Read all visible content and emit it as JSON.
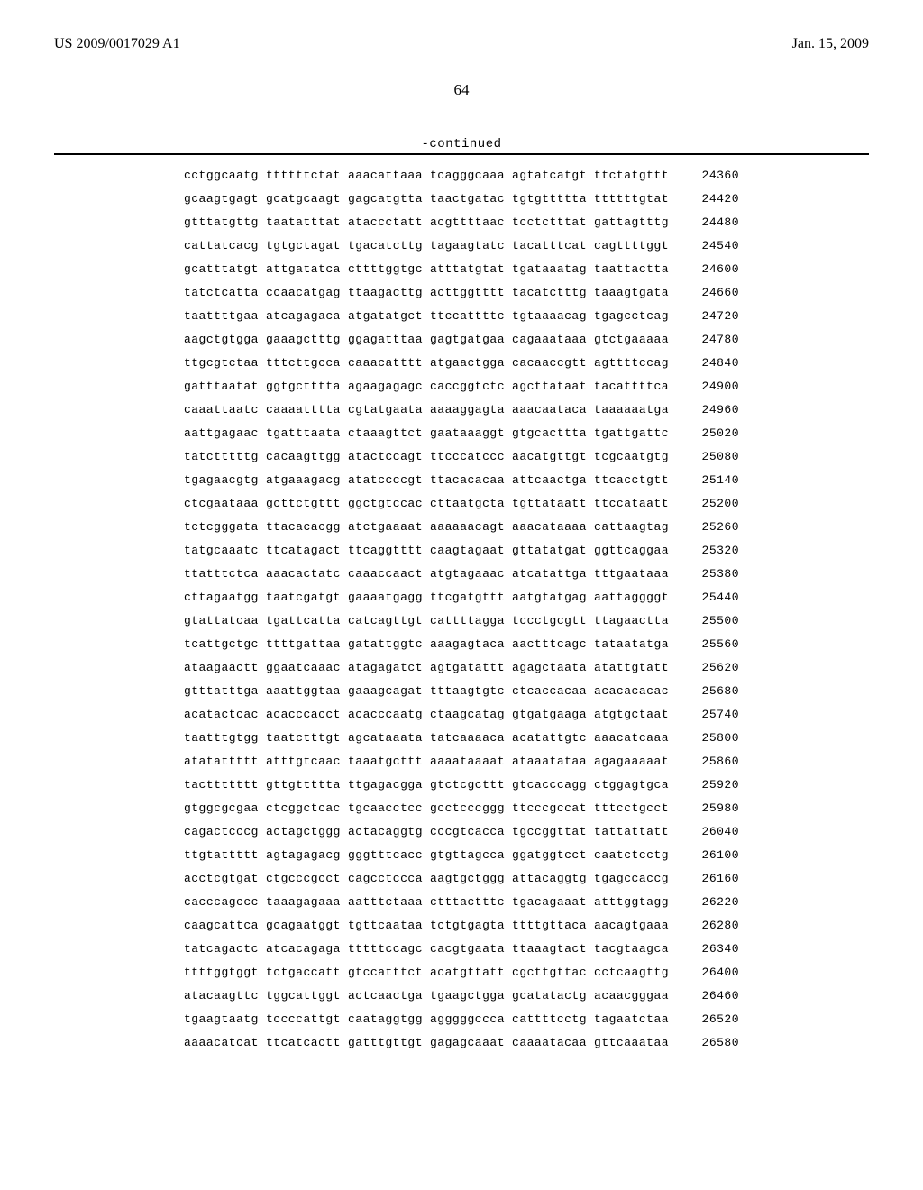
{
  "header": {
    "publication_number": "US 2009/0017029 A1",
    "publication_date": "Jan. 15, 2009"
  },
  "page_number": "64",
  "continued_label": "-continued",
  "sequence": {
    "group_gap_chars": 1,
    "rows": [
      {
        "groups": [
          "cctggcaatg",
          "ttttttctat",
          "aaacattaaa",
          "tcagggcaaa",
          "agtatcatgt",
          "ttctatgttt"
        ],
        "pos": "24360"
      },
      {
        "groups": [
          "gcaagtgagt",
          "gcatgcaagt",
          "gagcatgtta",
          "taactgatac",
          "tgtgttttta",
          "ttttttgtat"
        ],
        "pos": "24420"
      },
      {
        "groups": [
          "gtttatgttg",
          "taatatttat",
          "ataccctatt",
          "acgttttaac",
          "tcctctttat",
          "gattagtttg"
        ],
        "pos": "24480"
      },
      {
        "groups": [
          "cattatcacg",
          "tgtgctagat",
          "tgacatcttg",
          "tagaagtatc",
          "tacatttcat",
          "cagttttggt"
        ],
        "pos": "24540"
      },
      {
        "groups": [
          "gcatttatgt",
          "attgatatca",
          "cttttggtgc",
          "atttatgtat",
          "tgataaatag",
          "taattactta"
        ],
        "pos": "24600"
      },
      {
        "groups": [
          "tatctcatta",
          "ccaacatgag",
          "ttaagacttg",
          "acttggtttt",
          "tacatctttg",
          "taaagtgata"
        ],
        "pos": "24660"
      },
      {
        "groups": [
          "taattttgaa",
          "atcagagaca",
          "atgatatgct",
          "ttccattttc",
          "tgtaaaacag",
          "tgagcctcag"
        ],
        "pos": "24720"
      },
      {
        "groups": [
          "aagctgtgga",
          "gaaagctttg",
          "ggagatttaa",
          "gagtgatgaa",
          "cagaaataaa",
          "gtctgaaaaa"
        ],
        "pos": "24780"
      },
      {
        "groups": [
          "ttgcgtctaa",
          "tttcttgcca",
          "caaacatttt",
          "atgaactgga",
          "cacaaccgtt",
          "agttttccag"
        ],
        "pos": "24840"
      },
      {
        "groups": [
          "gatttaatat",
          "ggtgctttta",
          "agaagagagc",
          "caccggtctc",
          "agcttataat",
          "tacattttca"
        ],
        "pos": "24900"
      },
      {
        "groups": [
          "caaattaatc",
          "caaaatttta",
          "cgtatgaata",
          "aaaaggagta",
          "aaacaataca",
          "taaaaaatga"
        ],
        "pos": "24960"
      },
      {
        "groups": [
          "aattgagaac",
          "tgatttaata",
          "ctaaagttct",
          "gaataaaggt",
          "gtgcacttta",
          "tgattgattc"
        ],
        "pos": "25020"
      },
      {
        "groups": [
          "tatctttttg",
          "cacaagttgg",
          "atactccagt",
          "ttcccatccc",
          "aacatgttgt",
          "tcgcaatgtg"
        ],
        "pos": "25080"
      },
      {
        "groups": [
          "tgagaacgtg",
          "atgaaagacg",
          "atatccccgt",
          "ttacacacaa",
          "attcaactga",
          "ttcacctgtt"
        ],
        "pos": "25140"
      },
      {
        "groups": [
          "ctcgaataaa",
          "gcttctgttt",
          "ggctgtccac",
          "cttaatgcta",
          "tgttataatt",
          "ttccataatt"
        ],
        "pos": "25200"
      },
      {
        "groups": [
          "tctcgggata",
          "ttacacacgg",
          "atctgaaaat",
          "aaaaaacagt",
          "aaacataaaa",
          "cattaagtag"
        ],
        "pos": "25260"
      },
      {
        "groups": [
          "tatgcaaatc",
          "ttcatagact",
          "ttcaggtttt",
          "caagtagaat",
          "gttatatgat",
          "ggttcaggaa"
        ],
        "pos": "25320"
      },
      {
        "groups": [
          "ttatttctca",
          "aaacactatc",
          "caaaccaact",
          "atgtagaaac",
          "atcatattga",
          "tttgaataaa"
        ],
        "pos": "25380"
      },
      {
        "groups": [
          "cttagaatgg",
          "taatcgatgt",
          "gaaaatgagg",
          "ttcgatgttt",
          "aatgtatgag",
          "aattaggggt"
        ],
        "pos": "25440"
      },
      {
        "groups": [
          "gtattatcaa",
          "tgattcatta",
          "catcagttgt",
          "cattttagga",
          "tccctgcgtt",
          "ttagaactta"
        ],
        "pos": "25500"
      },
      {
        "groups": [
          "tcattgctgc",
          "ttttgattaa",
          "gatattggtc",
          "aaagagtaca",
          "aactttcagc",
          "tataatatga"
        ],
        "pos": "25560"
      },
      {
        "groups": [
          "ataagaactt",
          "ggaatcaaac",
          "atagagatct",
          "agtgatattt",
          "agagctaata",
          "atattgtatt"
        ],
        "pos": "25620"
      },
      {
        "groups": [
          "gtttatttga",
          "aaattggtaa",
          "gaaagcagat",
          "tttaagtgtc",
          "ctcaccacaa",
          "acacacacac"
        ],
        "pos": "25680"
      },
      {
        "groups": [
          "acatactcac",
          "acacccacct",
          "acacccaatg",
          "ctaagcatag",
          "gtgatgaaga",
          "atgtgctaat"
        ],
        "pos": "25740"
      },
      {
        "groups": [
          "taatttgtgg",
          "taatctttgt",
          "agcataaata",
          "tatcaaaaca",
          "acatattgtc",
          "aaacatcaaa"
        ],
        "pos": "25800"
      },
      {
        "groups": [
          "atatattttt",
          "atttgtcaac",
          "taaatgcttt",
          "aaaataaaat",
          "ataaatataa",
          "agagaaaaat"
        ],
        "pos": "25860"
      },
      {
        "groups": [
          "tacttttttt",
          "gttgttttta",
          "ttgagacgga",
          "gtctcgcttt",
          "gtcacccagg",
          "ctggagtgca"
        ],
        "pos": "25920"
      },
      {
        "groups": [
          "gtggcgcgaa",
          "ctcggctcac",
          "tgcaacctcc",
          "gcctcccggg",
          "ttcccgccat",
          "tttcctgcct"
        ],
        "pos": "25980"
      },
      {
        "groups": [
          "cagactcccg",
          "actagctggg",
          "actacaggtg",
          "cccgtcacca",
          "tgccggttat",
          "tattattatt"
        ],
        "pos": "26040"
      },
      {
        "groups": [
          "ttgtattttt",
          "agtagagacg",
          "gggtttcacc",
          "gtgttagcca",
          "ggatggtcct",
          "caatctcctg"
        ],
        "pos": "26100"
      },
      {
        "groups": [
          "acctcgtgat",
          "ctgcccgcct",
          "cagcctccca",
          "aagtgctggg",
          "attacaggtg",
          "tgagccaccg"
        ],
        "pos": "26160"
      },
      {
        "groups": [
          "cacccagccc",
          "taaagagaaa",
          "aatttctaaa",
          "ctttactttc",
          "tgacagaaat",
          "atttggtagg"
        ],
        "pos": "26220"
      },
      {
        "groups": [
          "caagcattca",
          "gcagaatggt",
          "tgttcaataa",
          "tctgtgagta",
          "ttttgttaca",
          "aacagtgaaa"
        ],
        "pos": "26280"
      },
      {
        "groups": [
          "tatcagactc",
          "atcacagaga",
          "tttttccagc",
          "cacgtgaata",
          "ttaaagtact",
          "tacgtaagca"
        ],
        "pos": "26340"
      },
      {
        "groups": [
          "ttttggtggt",
          "tctgaccatt",
          "gtccatttct",
          "acatgttatt",
          "cgcttgttac",
          "cctcaagttg"
        ],
        "pos": "26400"
      },
      {
        "groups": [
          "atacaagttc",
          "tggcattggt",
          "actcaactga",
          "tgaagctgga",
          "gcatatactg",
          "acaacgggaa"
        ],
        "pos": "26460"
      },
      {
        "groups": [
          "tgaagtaatg",
          "tccccattgt",
          "caataggtgg",
          "agggggccca",
          "cattttcctg",
          "tagaatctaa"
        ],
        "pos": "26520"
      },
      {
        "groups": [
          "aaaacatcat",
          "ttcatcactt",
          "gatttgttgt",
          "gagagcaaat",
          "caaaatacaa",
          "gttcaaataa"
        ],
        "pos": "26580"
      }
    ]
  }
}
